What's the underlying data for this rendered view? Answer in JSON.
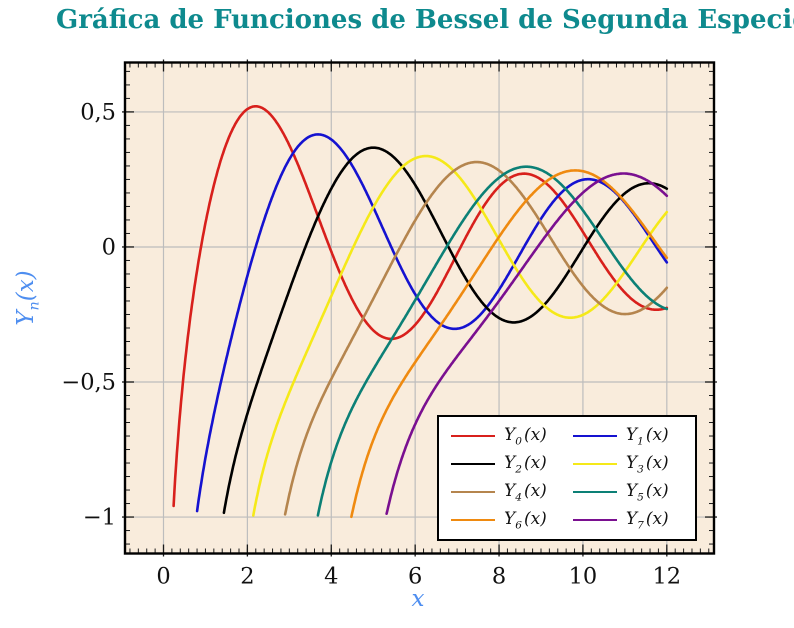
{
  "header": {
    "title": "Gráfica de Funciones de Bessel de Segunda Especie"
  },
  "colors": {
    "title": "#0e8a8e",
    "axis_label": "#4e8ef0",
    "plot_bg": "#f9ecdc",
    "grid": "#bdbdbd",
    "tick": "#1a1a1a",
    "tick_label": "#111111",
    "frame": "#000000",
    "legend_bg": "#ffffff",
    "legend_border": "#000000",
    "page_bg": "#ffffff"
  },
  "chart_data": {
    "type": "line",
    "title": "Gráfica de Funciones de Bessel de Segunda Especie",
    "xlabel": "x",
    "ylabel": "Y_n(x)",
    "ylabel_parts": {
      "base": "Y",
      "sub": "n",
      "args": "(x)"
    },
    "function": "Bessel functions of the second kind Y_n(x), n = 0..7",
    "x_range": [
      0.02,
      12
    ],
    "xlim": [
      -0.918,
      13.125
    ],
    "ylim": [
      -1.135,
      0.683
    ],
    "clip_y_min": -1.0,
    "sample_step": 0.02,
    "grid": "major",
    "legend_position": "south east",
    "x_major_ticks": [
      {
        "v": 0,
        "label": "0"
      },
      {
        "v": 2,
        "label": "2"
      },
      {
        "v": 4,
        "label": "4"
      },
      {
        "v": 6,
        "label": "6"
      },
      {
        "v": 8,
        "label": "8"
      },
      {
        "v": 10,
        "label": "10"
      },
      {
        "v": 12,
        "label": "12"
      }
    ],
    "y_major_ticks": [
      {
        "v": 0.5,
        "label": "0,5"
      },
      {
        "v": 0,
        "label": "0"
      },
      {
        "v": -0.5,
        "label": "−0,5"
      },
      {
        "v": -1,
        "label": "−1"
      }
    ],
    "x_minor_step": 0.2,
    "y_minor_step": 0.05,
    "series": [
      {
        "order": 0,
        "label": "Y0(x)",
        "label_base": "Y",
        "label_sub": "0",
        "label_args": "(x)",
        "color": "#d8201c",
        "first_max": {
          "x": 2.2,
          "y": 0.52
        },
        "enters_plot_at_x": 0.24
      },
      {
        "order": 1,
        "label": "Y1(x)",
        "label_base": "Y",
        "label_sub": "1",
        "label_args": "(x)",
        "color": "#1512d0",
        "first_max": {
          "x": 3.68,
          "y": 0.42
        },
        "enters_plot_at_x": 0.82
      },
      {
        "order": 2,
        "label": "Y2(x)",
        "label_base": "Y",
        "label_sub": "2",
        "label_args": "(x)",
        "color": "#000000",
        "first_max": {
          "x": 5.0,
          "y": 0.37
        },
        "enters_plot_at_x": 1.45
      },
      {
        "order": 3,
        "label": "Y3(x)",
        "label_base": "Y",
        "label_sub": "3",
        "label_args": "(x)",
        "color": "#f5e919",
        "first_max": {
          "x": 6.33,
          "y": 0.33
        },
        "enters_plot_at_x": 2.16
      },
      {
        "order": 4,
        "label": "Y4(x)",
        "label_base": "Y",
        "label_sub": "4",
        "label_args": "(x)",
        "color": "#b5854e",
        "first_max": {
          "x": 7.62,
          "y": 0.31
        },
        "enters_plot_at_x": 2.91
      },
      {
        "order": 5,
        "label": "Y5(x)",
        "label_base": "Y",
        "label_sub": "5",
        "label_args": "(x)",
        "color": "#0c8076",
        "first_max": {
          "x": 8.8,
          "y": 0.3
        },
        "enters_plot_at_x": 3.72
      },
      {
        "order": 6,
        "label": "Y6(x)",
        "label_base": "Y",
        "label_sub": "6",
        "label_args": "(x)",
        "color": "#ef8a10",
        "first_max": {
          "x": 9.9,
          "y": 0.29
        },
        "enters_plot_at_x": 4.5
      },
      {
        "order": 7,
        "label": "Y7(x)",
        "label_base": "Y",
        "label_sub": "7",
        "label_args": "(x)",
        "color": "#7a1090",
        "first_max": {
          "x": 11.0,
          "y": 0.28
        },
        "enters_plot_at_x": 5.3
      }
    ]
  }
}
